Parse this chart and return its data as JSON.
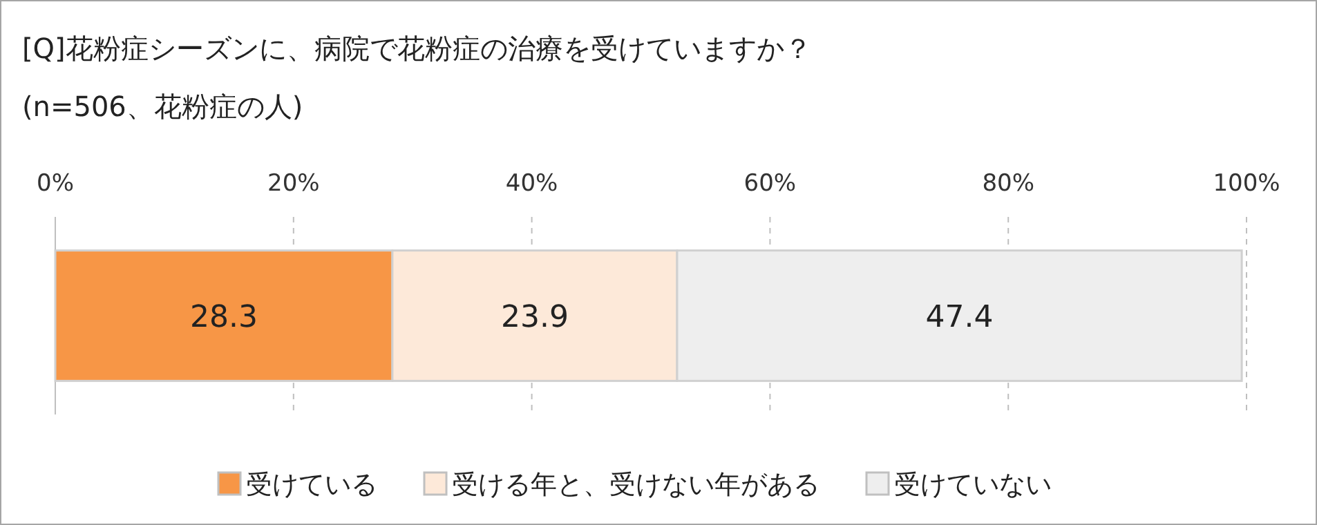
{
  "chart_data": {
    "type": "bar",
    "orientation": "horizontal",
    "stacked": true,
    "title": "[Q]花粉症シーズンに、病院で花粉症の治療を受けていますか？",
    "subtitle": "(n=506、花粉症の人)",
    "categories": [
      null
    ],
    "series": [
      {
        "name": "受けている",
        "color": "#f79646",
        "values": [
          28.3
        ]
      },
      {
        "name": "受ける年と、受けない年がある",
        "color": "#fde9d9",
        "values": [
          23.9
        ]
      },
      {
        "name": "受けていない",
        "color": "#eeeeee",
        "values": [
          47.4
        ]
      }
    ],
    "xlim": [
      0,
      100
    ],
    "xticks": [
      {
        "value": 0,
        "label": "0%"
      },
      {
        "value": 20,
        "label": "20%"
      },
      {
        "value": 40,
        "label": "40%"
      },
      {
        "value": 60,
        "label": "60%"
      },
      {
        "value": 80,
        "label": "80%"
      },
      {
        "value": 100,
        "label": "100%"
      }
    ],
    "tick_labels": "x",
    "grid": "x",
    "legend": "bottom",
    "data_labels": true
  }
}
